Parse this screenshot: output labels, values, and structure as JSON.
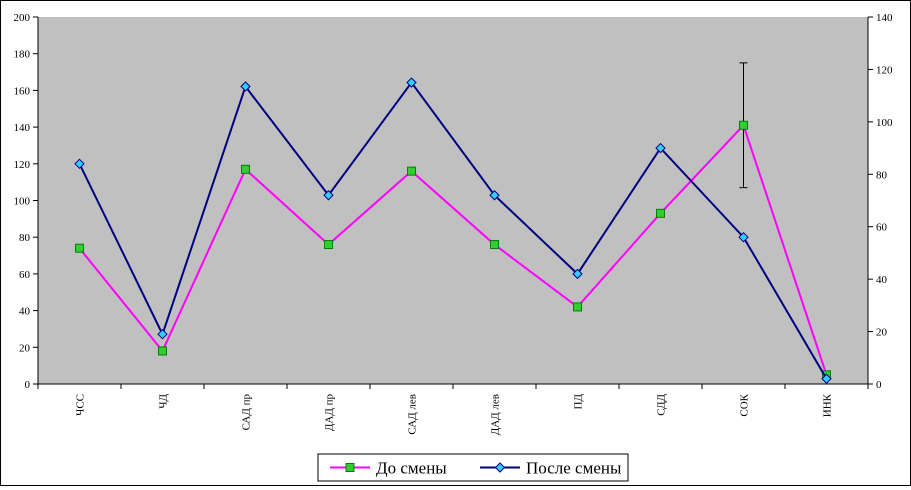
{
  "chart_data": {
    "type": "line",
    "categories": [
      "ЧСС",
      "ЧД",
      "САД пр",
      "ДАД пр",
      "САД лев",
      "ДАД лев",
      "ПД",
      "СДД",
      "СОК",
      "ИНК"
    ],
    "y_left": {
      "ylim": [
        0,
        200
      ],
      "ticks": [
        "0",
        "20",
        "40",
        "60",
        "80",
        "100",
        "120",
        "140",
        "160",
        "180",
        "200"
      ]
    },
    "y_right": {
      "ylim": [
        0,
        140
      ],
      "ticks": [
        "0",
        "20",
        "40",
        "60",
        "80",
        "100",
        "120",
        "140"
      ]
    },
    "grid": false,
    "plot_background": "#C0C0C0",
    "legend_position": "bottom",
    "series": [
      {
        "name": "До смены",
        "axis": "left",
        "values": [
          74,
          18,
          117,
          76,
          116,
          76,
          42,
          93,
          141,
          5
        ],
        "line_color": "#FF00FF",
        "marker": "square",
        "marker_color": "#33CC33",
        "error_bars": [
          null,
          null,
          null,
          null,
          null,
          null,
          null,
          null,
          34,
          null
        ]
      },
      {
        "name": "После смены",
        "axis": "right",
        "values": [
          84,
          19,
          113.5,
          72,
          115,
          72,
          42,
          90,
          56,
          2
        ],
        "line_color": "#000080",
        "marker": "diamond",
        "marker_color": "#33CCFF"
      }
    ]
  }
}
